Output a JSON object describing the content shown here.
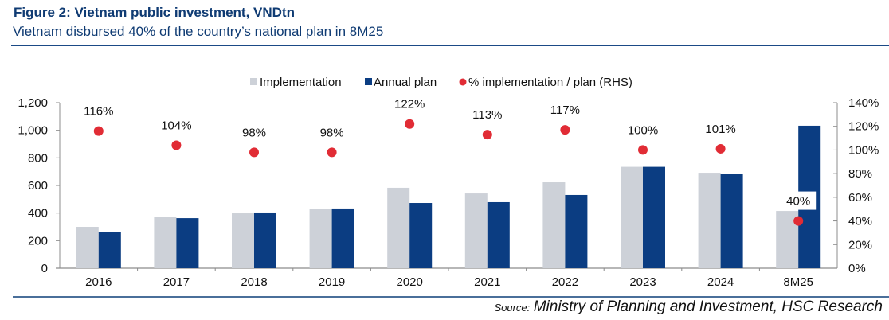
{
  "figure": {
    "title": "Figure 2: Vietnam public investment, VNDtn",
    "subtitle": "Vietnam disbursed 40% of the country’s national plan in 8M25",
    "source_label": "Source:",
    "source_text": "Ministry of Planning and Investment, HSC Research"
  },
  "colors": {
    "implementation": "#cdd1d8",
    "annual_plan": "#0b3d82",
    "ratio": "#e12c35",
    "title": "#0f3b73"
  },
  "chart_data": {
    "type": "bar",
    "title": "Vietnam public investment, VNDtn",
    "xlabel": "",
    "ylabel": "VNDtn",
    "y2label": "% implementation / plan",
    "categories": [
      "2016",
      "2017",
      "2018",
      "2019",
      "2020",
      "2021",
      "2022",
      "2023",
      "2024",
      "8M25"
    ],
    "series": [
      {
        "name": "Implementation",
        "type": "bar",
        "axis": "left",
        "values": [
          300,
          375,
          398,
          427,
          583,
          542,
          623,
          735,
          692,
          415
        ]
      },
      {
        "name": "Annual plan",
        "type": "bar",
        "axis": "left",
        "values": [
          260,
          363,
          404,
          433,
          473,
          479,
          531,
          735,
          681,
          1033
        ]
      },
      {
        "name": "% implementation / plan (RHS)",
        "type": "scatter",
        "axis": "right",
        "values": [
          116,
          104,
          98,
          98,
          122,
          113,
          117,
          100,
          101,
          40
        ],
        "labels": [
          "116%",
          "104%",
          "98%",
          "98%",
          "122%",
          "113%",
          "117%",
          "100%",
          "101%",
          "40%"
        ]
      }
    ],
    "ylim": [
      0,
      1200
    ],
    "yticks": [
      0,
      200,
      400,
      600,
      800,
      1000,
      1200
    ],
    "ytick_labels": [
      "0",
      "200",
      "400",
      "600",
      "800",
      "1,000",
      "1,200"
    ],
    "y2lim": [
      0,
      140
    ],
    "y2ticks": [
      0,
      20,
      40,
      60,
      80,
      100,
      120,
      140
    ],
    "y2tick_labels": [
      "0%",
      "20%",
      "40%",
      "60%",
      "80%",
      "100%",
      "120%",
      "140%"
    ],
    "legend": {
      "position": "top-center",
      "entries": [
        "Implementation",
        "Annual plan",
        "% implementation / plan (RHS)"
      ]
    },
    "grid": false
  }
}
